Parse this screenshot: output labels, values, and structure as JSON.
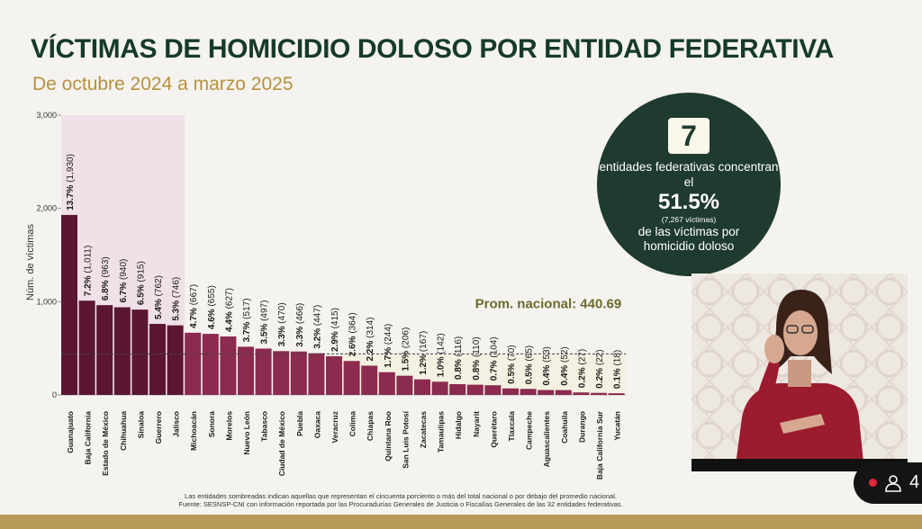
{
  "header": {
    "title": "VÍCTIMAS DE HOMICIDIO DOLOSO POR ENTIDAD FEDERATIVA",
    "subtitle": "De octubre 2024 a marzo 2025"
  },
  "callout": {
    "number": "7",
    "line1": "entidades federativas concentran el",
    "percent": "51.5%",
    "detail": "(7,267 víctimas)",
    "line2": "de las víctimas por homicidio doloso"
  },
  "footnote": {
    "line1": "Las entidades sombreadas indican aquellas que representan el cincuenta porciento o más del total nacional o por debajo del promedio nacional.",
    "line2": "Fuente: SESNSP-CNI con información reportada por las Procuradurías Generales de Justicia o Fiscalías Generales de las 32 entidades federativas."
  },
  "overlay": {
    "participants_count": "4"
  },
  "colors": {
    "title": "#163a2c",
    "subtitle": "#b5913f",
    "dark_bar": "#5b1631",
    "light_bar": "#8c2a4f",
    "top_shade": "#efe1e7",
    "bottom_shade": "#f3f1e1",
    "average_label": "#6c6a2c",
    "circle": "#1f3b30"
  },
  "chart_data": {
    "type": "bar",
    "ylabel": "Núm. de víctimas",
    "ylim": [
      0,
      3000
    ],
    "yticks": [
      0,
      1000,
      2000,
      3000
    ],
    "ytick_labels": [
      "0",
      "1,000",
      "2,000",
      "3,000"
    ],
    "average": 440.69,
    "average_label": "Prom. nacional: 440.69",
    "top_group_count": 7,
    "categories": [
      "Guanajuato",
      "Baja California",
      "Estado de México",
      "Chihuahua",
      "Sinaloa",
      "Guerrero",
      "Jalisco",
      "Michoacán",
      "Sonora",
      "Morelos",
      "Nuevo León",
      "Tabasco",
      "Ciudad de México",
      "Puebla",
      "Oaxaca",
      "Veracruz",
      "Colima",
      "Chiapas",
      "Quintana Roo",
      "San Luis Potosí",
      "Zacatecas",
      "Tamaulipas",
      "Hidalgo",
      "Nayarit",
      "Querétaro",
      "Tlaxcala",
      "Campeche",
      "Aguascalientes",
      "Coahuila",
      "Durango",
      "Baja California Sur",
      "Yucatán"
    ],
    "values": [
      1930,
      1011,
      963,
      940,
      915,
      762,
      746,
      667,
      655,
      627,
      517,
      497,
      470,
      466,
      447,
      415,
      364,
      314,
      244,
      206,
      167,
      142,
      116,
      110,
      104,
      70,
      65,
      53,
      52,
      27,
      22,
      18
    ],
    "percents": [
      "13.7%",
      "7.2%",
      "6.8%",
      "6.7%",
      "6.5%",
      "5.4%",
      "5.3%",
      "4.7%",
      "4.6%",
      "4.4%",
      "3.7%",
      "3.5%",
      "3.3%",
      "3.3%",
      "3.2%",
      "2.9%",
      "2.6%",
      "2.2%",
      "1.7%",
      "1.5%",
      "1.2%",
      "1.0%",
      "0.8%",
      "0.8%",
      "0.7%",
      "0.5%",
      "0.5%",
      "0.4%",
      "0.4%",
      "0.2%",
      "0.2%",
      "0.1%"
    ],
    "counts": [
      "(1,930)",
      "(1,011)",
      "(963)",
      "(940)",
      "(915)",
      "(762)",
      "(746)",
      "(667)",
      "(655)",
      "(627)",
      "(517)",
      "(497)",
      "(470)",
      "(466)",
      "(447)",
      "(415)",
      "(364)",
      "(314)",
      "(244)",
      "(206)",
      "(167)",
      "(142)",
      "(116)",
      "(110)",
      "(104)",
      "(70)",
      "(65)",
      "(53)",
      "(52)",
      "(27)",
      "(22)",
      "(18)"
    ]
  }
}
